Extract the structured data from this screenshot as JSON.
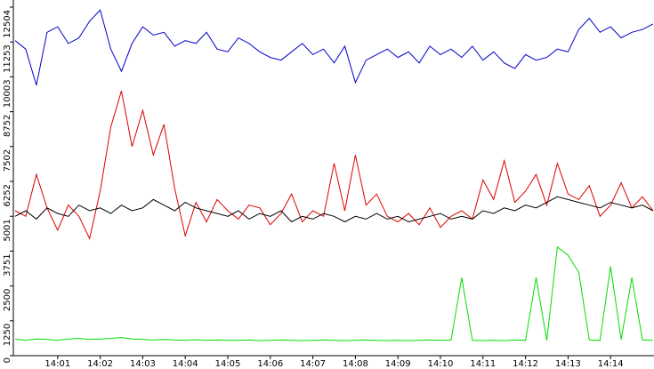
{
  "chart_data": {
    "type": "line",
    "x": [
      0,
      0.25,
      0.5,
      0.75,
      1,
      1.25,
      1.5,
      1.75,
      2,
      2.25,
      2.5,
      2.75,
      3,
      3.25,
      3.5,
      3.75,
      4,
      4.25,
      4.5,
      4.75,
      5,
      5.25,
      5.5,
      5.75,
      6,
      6.25,
      6.5,
      6.75,
      7,
      7.25,
      7.5,
      7.75,
      8,
      8.25,
      8.5,
      8.75,
      9,
      9.25,
      9.5,
      9.75,
      10,
      10.25,
      10.5,
      10.75,
      11,
      11.25,
      11.5,
      11.75,
      12,
      12.25,
      12.5,
      12.75,
      13,
      13.25,
      13.5,
      13.75,
      14,
      14.25,
      14.5,
      14.75,
      15
    ],
    "xlim": [
      0,
      15
    ],
    "xticks": [
      {
        "value": 1,
        "label": "14:01"
      },
      {
        "value": 2,
        "label": "14:02"
      },
      {
        "value": 3,
        "label": "14:03"
      },
      {
        "value": 4,
        "label": "14:04"
      },
      {
        "value": 5,
        "label": "14:05"
      },
      {
        "value": 6,
        "label": "14:06"
      },
      {
        "value": 7,
        "label": "14:07"
      },
      {
        "value": 8,
        "label": "14:08"
      },
      {
        "value": 9,
        "label": "14:09"
      },
      {
        "value": 10,
        "label": "14:10"
      },
      {
        "value": 11,
        "label": "14:11"
      },
      {
        "value": 12,
        "label": "14:12"
      },
      {
        "value": 13,
        "label": "14:13"
      },
      {
        "value": 14,
        "label": "14:14"
      }
    ],
    "ylim": [
      0,
      12504
    ],
    "yticks": [
      0,
      1250,
      2500,
      3751,
      5001,
      6252,
      7502,
      8752,
      10003,
      11253,
      12504
    ],
    "series": [
      {
        "color": "#0000cc",
        "values": [
          11300,
          11000,
          9700,
          11600,
          11800,
          11200,
          11400,
          12000,
          12400,
          11000,
          10200,
          11200,
          11800,
          11500,
          11600,
          11100,
          11300,
          11200,
          11600,
          11000,
          10900,
          11400,
          11200,
          10900,
          10700,
          10600,
          10900,
          11200,
          10800,
          11000,
          10500,
          11100,
          9800,
          10600,
          10800,
          11000,
          10700,
          10900,
          10500,
          11100,
          10800,
          11000,
          10700,
          11100,
          10600,
          10900,
          10500,
          10300,
          10800,
          10600,
          10700,
          11000,
          10900,
          11700,
          12100,
          11600,
          11800,
          11400,
          11600,
          11700,
          11900
        ]
      },
      {
        "color": "#dd0000",
        "values": [
          5200,
          5000,
          6500,
          5300,
          4500,
          5400,
          5000,
          4200,
          5900,
          8200,
          9500,
          7500,
          8800,
          7200,
          8300,
          6000,
          4300,
          5500,
          4800,
          5600,
          5200,
          4900,
          5400,
          5300,
          4700,
          5100,
          5800,
          4800,
          5200,
          5000,
          6900,
          5200,
          7200,
          5400,
          5800,
          5000,
          4800,
          5100,
          4700,
          5300,
          4600,
          5000,
          5200,
          4900,
          6300,
          5600,
          7000,
          5500,
          5900,
          6500,
          5400,
          6900,
          5800,
          5600,
          6100,
          5000,
          5400,
          6200,
          5300,
          5700,
          5200
        ]
      },
      {
        "color": "#000000",
        "values": [
          5000,
          5200,
          4900,
          5300,
          5100,
          5000,
          5400,
          5200,
          5300,
          5100,
          5400,
          5200,
          5300,
          5600,
          5400,
          5200,
          5500,
          5300,
          5200,
          5100,
          5000,
          5200,
          4900,
          5100,
          5000,
          5200,
          4800,
          5000,
          4900,
          5100,
          5000,
          4800,
          5000,
          4900,
          5100,
          4900,
          5000,
          4800,
          4900,
          5000,
          5100,
          4900,
          5000,
          4900,
          5200,
          5100,
          5300,
          5200,
          5400,
          5300,
          5500,
          5700,
          5600,
          5500,
          5400,
          5300,
          5500,
          5400,
          5300,
          5400,
          5200
        ]
      },
      {
        "color": "#00dd00",
        "values": [
          600,
          550,
          600,
          580,
          550,
          600,
          620,
          580,
          600,
          620,
          650,
          600,
          580,
          560,
          580,
          560,
          550,
          570,
          550,
          560,
          550,
          550,
          560,
          540,
          550,
          560,
          550,
          540,
          550,
          560,
          550,
          540,
          550,
          560,
          550,
          540,
          550,
          540,
          550,
          560,
          550,
          560,
          2800,
          550,
          540,
          550,
          540,
          560,
          550,
          2800,
          550,
          3900,
          3600,
          3000,
          560,
          550,
          3200,
          580,
          2800,
          560,
          550
        ]
      }
    ]
  }
}
